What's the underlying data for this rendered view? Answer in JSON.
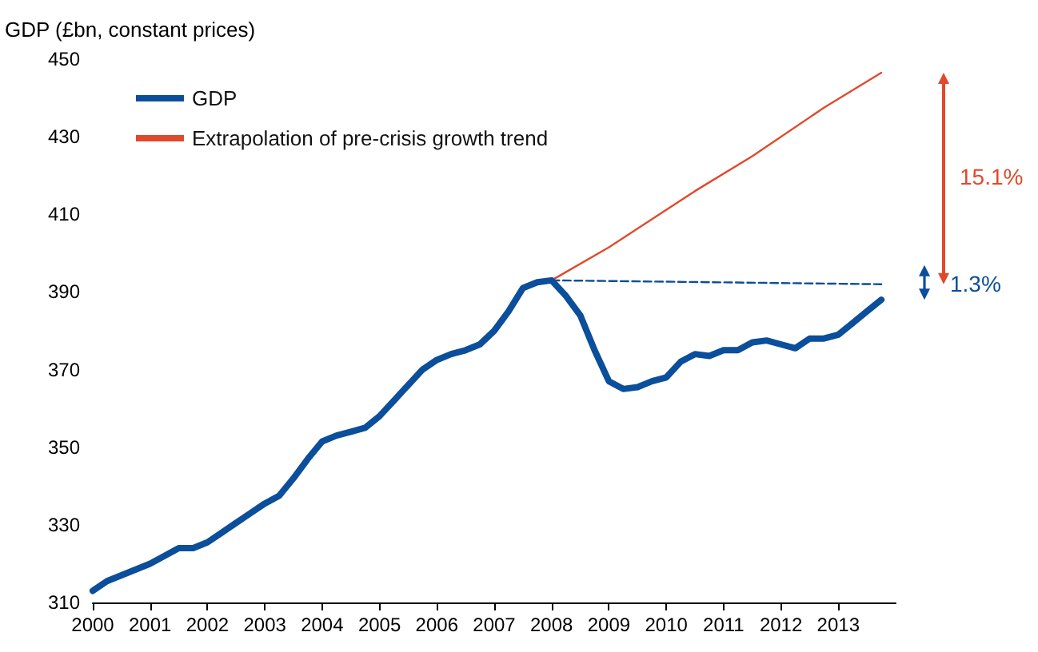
{
  "chart_data": {
    "type": "line",
    "ylabel": "GDP (£bn, constant prices)",
    "x": [
      2000,
      2000.25,
      2000.5,
      2000.75,
      2001,
      2001.25,
      2001.5,
      2001.75,
      2002,
      2002.25,
      2002.5,
      2002.75,
      2003,
      2003.25,
      2003.5,
      2003.75,
      2004,
      2004.25,
      2004.5,
      2004.75,
      2005,
      2005.25,
      2005.5,
      2005.75,
      2006,
      2006.25,
      2006.5,
      2006.75,
      2007,
      2007.25,
      2007.5,
      2007.75,
      2008,
      2008.25,
      2008.5,
      2008.75,
      2009,
      2009.25,
      2009.5,
      2009.75,
      2010,
      2010.25,
      2010.5,
      2010.75,
      2011,
      2011.25,
      2011.5,
      2011.75,
      2012,
      2012.25,
      2012.5,
      2012.75,
      2013,
      2013.25,
      2013.5,
      2013.75
    ],
    "series": [
      {
        "name": "GDP",
        "color": "#0b4e9b",
        "values": [
          313,
          315.5,
          317,
          318.5,
          320,
          322,
          324,
          324,
          325.5,
          328,
          330.5,
          333,
          335.5,
          337.5,
          342,
          347,
          351.5,
          353,
          354,
          355,
          358,
          362,
          366,
          370,
          372.5,
          374,
          375,
          376.5,
          380,
          385,
          391,
          392.5,
          393,
          389,
          384,
          375,
          367,
          365,
          365.5,
          367,
          368,
          372,
          374,
          373.5,
          375,
          375,
          377,
          377.5,
          376.5,
          375.5,
          378,
          378,
          379,
          382,
          385,
          388
        ]
      },
      {
        "name": "Extrapolation of pre-crisis growth trend",
        "color": "#e0492c",
        "x": [
          2008,
          2009,
          2010.5,
          2011.5,
          2012.75,
          2013.75
        ],
        "values": [
          393,
          401.5,
          416,
          425,
          437.5,
          446.5
        ]
      },
      {
        "color": "#0b4e9b",
        "line_style": "dashed",
        "x": [
          2008,
          2013.75
        ],
        "values": [
          393,
          392
        ]
      }
    ],
    "annotations": [
      "15.1%",
      "1.3%"
    ],
    "xlim": [
      2000,
      2014
    ],
    "xticks": [
      2000,
      2001,
      2002,
      2003,
      2004,
      2005,
      2006,
      2007,
      2008,
      2009,
      2010,
      2011,
      2012,
      2013
    ],
    "ylim": [
      310,
      450
    ],
    "yticks": [
      310,
      330,
      350,
      370,
      390,
      410,
      430,
      450
    ],
    "grid": false,
    "legend": "top left",
    "marker": "none"
  }
}
